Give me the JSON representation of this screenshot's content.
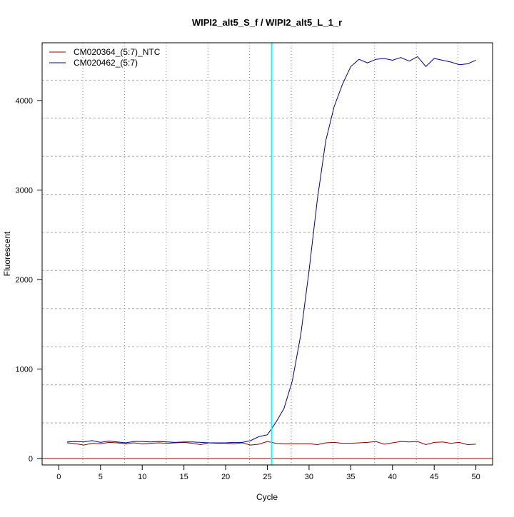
{
  "chart_data": {
    "type": "line",
    "title": "WIPI2_alt5_S_f / WIPI2_alt5_L_1_r",
    "xlabel": "Cycle",
    "ylabel": "Fluorescent",
    "xlim": [
      -2,
      52
    ],
    "ylim": [
      -72,
      4645
    ],
    "x_ticks": [
      0,
      5,
      10,
      15,
      20,
      25,
      30,
      35,
      40,
      45,
      50
    ],
    "y_ticks": [
      0,
      1000,
      2000,
      3000,
      4000
    ],
    "grid": true,
    "legend_position": "top-left",
    "threshold_cycle": 25.5,
    "threshold_color": "#00ffff",
    "baseline": 0,
    "baseline_color": "#8b0000",
    "x": [
      1,
      2,
      3,
      4,
      5,
      6,
      7,
      8,
      9,
      10,
      11,
      12,
      13,
      14,
      15,
      16,
      17,
      18,
      19,
      20,
      21,
      22,
      23,
      24,
      25,
      26,
      27,
      28,
      29,
      30,
      31,
      32,
      33,
      34,
      35,
      36,
      37,
      38,
      39,
      40,
      41,
      42,
      43,
      44,
      45,
      46,
      47,
      48,
      49,
      50
    ],
    "series": [
      {
        "name": "CM020364_(5:7)_NTC",
        "color": "#8b0000",
        "values": [
          175,
          165,
          150,
          170,
          165,
          180,
          175,
          165,
          175,
          165,
          170,
          175,
          170,
          175,
          180,
          170,
          155,
          175,
          170,
          170,
          165,
          175,
          150,
          160,
          190,
          170,
          165,
          165,
          165,
          165,
          155,
          175,
          180,
          170,
          170,
          175,
          180,
          190,
          160,
          175,
          190,
          185,
          190,
          155,
          180,
          185,
          170,
          180,
          155,
          160
        ]
      },
      {
        "name": "CM020462_(5:7)",
        "color": "#00008b",
        "values": [
          185,
          190,
          185,
          200,
          180,
          195,
          185,
          175,
          190,
          190,
          185,
          190,
          185,
          180,
          185,
          185,
          180,
          175,
          175,
          175,
          180,
          180,
          200,
          245,
          265,
          400,
          560,
          870,
          1380,
          2100,
          2900,
          3550,
          3930,
          4180,
          4380,
          4460,
          4420,
          4460,
          4470,
          4450,
          4480,
          4440,
          4490,
          4380,
          4470,
          4450,
          4430,
          4400,
          4410,
          4450
        ]
      }
    ]
  }
}
